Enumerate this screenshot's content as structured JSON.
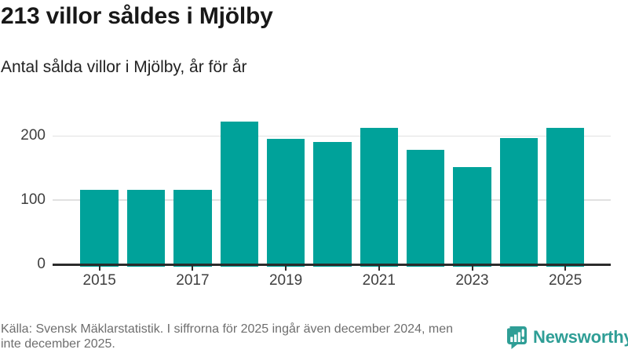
{
  "header": {
    "title": "213 villor såldes i Mjölby",
    "subtitle": "Antal sålda villor i Mjölby, år för år"
  },
  "chart_data": {
    "type": "bar",
    "title": "Antal sålda villor i Mjölby, år för år",
    "xlabel": "",
    "ylabel": "",
    "categories": [
      "2015",
      "2016",
      "2017",
      "2018",
      "2019",
      "2020",
      "2021",
      "2022",
      "2023",
      "2024",
      "2025"
    ],
    "values": [
      116,
      116,
      116,
      222,
      195,
      191,
      213,
      178,
      152,
      197,
      213
    ],
    "ylim": [
      0,
      228
    ],
    "yticks": [
      0,
      100,
      200
    ],
    "xticks": [
      "2015",
      "2017",
      "2019",
      "2021",
      "2023",
      "2025"
    ],
    "grid": "horizontal-only",
    "legend": "none",
    "bar_color": "#00a29a",
    "grid_color": "#e1e1e1",
    "axis_color": "#2b2b2b",
    "tick_label_color": "#3f3f3f"
  },
  "footer": {
    "source_line1": "Källa: Svensk Mäklarstatistik. I siffrorna för 2025 ingår även december 2024, men",
    "source_line2": "inte december 2025.",
    "logo_text": "Newsworthy",
    "brand_color": "#2f9e96"
  }
}
